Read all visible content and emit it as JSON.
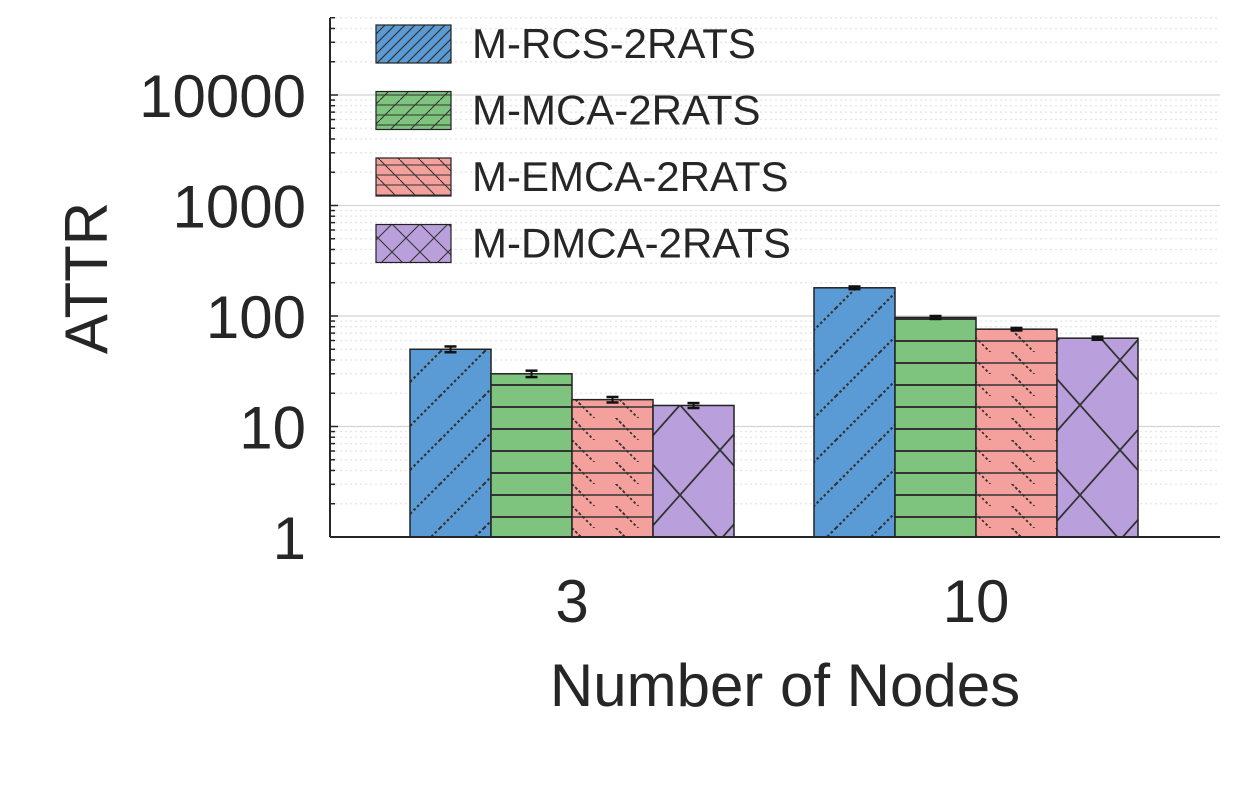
{
  "chart_data": {
    "type": "bar",
    "title": "",
    "xlabel": "Number of Nodes",
    "ylabel": "ATTR",
    "yscale": "log",
    "ylim": [
      1,
      50000
    ],
    "yticks": [
      1,
      10,
      100,
      1000,
      10000
    ],
    "ytick_labels": [
      "1",
      "10",
      "100",
      "1000",
      "10000"
    ],
    "categories": [
      "3",
      "10"
    ],
    "grid": true,
    "legend_position": "top-left",
    "series": [
      {
        "name": "M-RCS-2RATS",
        "values": [
          50,
          180
        ],
        "error": [
          3,
          5
        ],
        "color": "#5b9bd5",
        "hatch": "diagonal"
      },
      {
        "name": "M-MCA-2RATS",
        "values": [
          30,
          97
        ],
        "error": [
          2,
          3
        ],
        "color": "#7ec47e",
        "hatch": "horizontal"
      },
      {
        "name": "M-EMCA-2RATS",
        "values": [
          17.5,
          76
        ],
        "error": [
          1,
          2
        ],
        "color": "#f4a09c",
        "hatch": "backslash"
      },
      {
        "name": "M-DMCA-2RATS",
        "values": [
          15.5,
          63
        ],
        "error": [
          0.8,
          2
        ],
        "color": "#b9a0dc",
        "hatch": "cross"
      }
    ]
  }
}
